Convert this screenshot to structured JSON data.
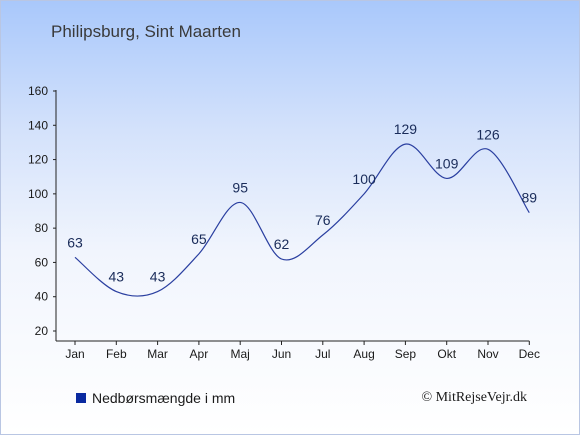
{
  "page": {
    "title": "Philipsburg, Sint Maarten",
    "credit": "© MitRejseVejr.dk"
  },
  "colors": {
    "line": "#2a3fa0",
    "axis": "#222222",
    "legend_swatch": "#0a2aa0"
  },
  "chart_data": {
    "type": "line",
    "title": "Philipsburg, Sint Maarten",
    "xlabel": "",
    "ylabel": "",
    "categories": [
      "Jan",
      "Feb",
      "Mar",
      "Apr",
      "Maj",
      "Jun",
      "Jul",
      "Aug",
      "Sep",
      "Okt",
      "Nov",
      "Dec"
    ],
    "series": [
      {
        "name": "Nedbørsmængde i mm",
        "values": [
          63,
          43,
          43,
          65,
          95,
          62,
          76,
          100,
          129,
          109,
          126,
          89
        ]
      }
    ],
    "ylim": [
      20,
      160
    ],
    "yticks": [
      20,
      40,
      60,
      80,
      100,
      120,
      140,
      160
    ],
    "grid": false,
    "legend_position": "bottom-left"
  }
}
